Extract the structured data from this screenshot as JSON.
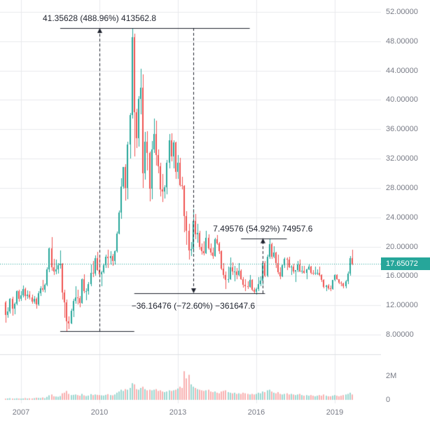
{
  "chart": {
    "last_price_label": "17.65072"
  },
  "annotations": {
    "measure_up_1": {
      "label": "41.35628 (488.96%) 413562.8",
      "from_price": 8.46,
      "to_price": 49.81,
      "arrow_month": "2010-01",
      "direction": "up",
      "top_line": {
        "price": 49.81,
        "from": "2008-07",
        "to": "2015-10"
      },
      "bottom_line": {
        "price": 8.46,
        "from": "2008-07",
        "to": "2011-05"
      }
    },
    "measure_down": {
      "label": "−36.16476 (−72.60%) −361647.6",
      "from_price": 49.81,
      "to_price": 13.65,
      "arrow_month": "2013-08",
      "direction": "down",
      "bottom_line": {
        "price": 13.65,
        "from": "2011-05",
        "to": "2016-05"
      }
    },
    "measure_up_2": {
      "label": "7.49576 (54.92%) 74957.6",
      "from_price": 13.65,
      "to_price": 21.14,
      "arrow_month": "2016-04",
      "direction": "up",
      "top_line": {
        "price": 21.14,
        "from": "2015-06",
        "to": "2017-03"
      }
    }
  },
  "chart_data": {
    "type": "candlestick",
    "start_month": "2006-06",
    "x_ticks": [
      2007,
      2010,
      2013,
      2016,
      2019
    ],
    "price_ticks": [
      52,
      48,
      44,
      40,
      36,
      32,
      28,
      24,
      20,
      16,
      12,
      8
    ],
    "price_tick_labels": [
      "52.00000",
      "48.00000",
      "44.00000",
      "40.00000",
      "36.00000",
      "32.00000",
      "28.00000",
      "24.00000",
      "20.00000",
      "16.00000",
      "12.00000",
      "8.00000"
    ],
    "volume_ticks": [
      {
        "label": "2M",
        "value": 2
      },
      {
        "label": "0",
        "value": 0
      }
    ],
    "last_price": 17.65072,
    "ylim": [
      5.3,
      53.6
    ],
    "ohlc": [
      [
        12.4,
        12.6,
        9.6,
        10.7
      ],
      [
        10.7,
        11.7,
        10.3,
        11.2
      ],
      [
        11.2,
        13.0,
        10.9,
        12.9
      ],
      [
        12.9,
        13.2,
        10.6,
        11.5
      ],
      [
        11.5,
        12.4,
        10.8,
        12.2
      ],
      [
        12.2,
        14.0,
        12.0,
        13.9
      ],
      [
        13.9,
        14.1,
        12.5,
        12.9
      ],
      [
        12.9,
        13.9,
        12.6,
        13.4
      ],
      [
        13.4,
        14.7,
        13.1,
        14.2
      ],
      [
        14.2,
        14.4,
        12.7,
        13.3
      ],
      [
        13.3,
        14.0,
        12.9,
        13.5
      ],
      [
        13.5,
        13.9,
        12.8,
        13.1
      ],
      [
        13.1,
        13.5,
        12.2,
        12.5
      ],
      [
        12.5,
        13.3,
        12.2,
        12.9
      ],
      [
        12.9,
        13.1,
        11.5,
        12.1
      ],
      [
        12.1,
        13.9,
        11.9,
        13.6
      ],
      [
        13.6,
        14.6,
        13.3,
        14.3
      ],
      [
        14.3,
        15.5,
        13.8,
        14.1
      ],
      [
        14.1,
        15.0,
        13.7,
        14.8
      ],
      [
        14.8,
        17.2,
        14.6,
        16.9
      ],
      [
        16.9,
        19.9,
        16.5,
        19.8
      ],
      [
        19.8,
        21.3,
        16.7,
        17.2
      ],
      [
        17.2,
        18.3,
        16.1,
        16.6
      ],
      [
        16.6,
        18.2,
        16.2,
        16.9
      ],
      [
        16.9,
        17.8,
        16.3,
        17.5
      ],
      [
        17.5,
        19.5,
        17.0,
        17.7
      ],
      [
        17.7,
        17.8,
        12.8,
        13.7
      ],
      [
        13.7,
        14.1,
        10.3,
        12.4
      ],
      [
        12.4,
        12.8,
        8.4,
        9.8
      ],
      [
        9.8,
        10.5,
        8.8,
        9.5
      ],
      [
        9.5,
        11.5,
        9.4,
        11.3
      ],
      [
        11.3,
        12.9,
        10.4,
        12.6
      ],
      [
        12.6,
        14.6,
        12.2,
        13.1
      ],
      [
        13.1,
        14.1,
        12.1,
        13.0
      ],
      [
        13.0,
        13.3,
        11.7,
        12.3
      ],
      [
        12.3,
        15.7,
        12.2,
        15.6
      ],
      [
        15.6,
        16.2,
        13.6,
        13.9
      ],
      [
        13.9,
        14.3,
        12.7,
        13.9
      ],
      [
        13.9,
        15.2,
        13.5,
        14.9
      ],
      [
        14.9,
        17.6,
        14.6,
        16.4
      ],
      [
        16.4,
        18.0,
        15.8,
        16.3
      ],
      [
        16.3,
        18.8,
        16.0,
        18.4
      ],
      [
        18.4,
        19.3,
        16.7,
        16.8
      ],
      [
        16.8,
        18.9,
        16.0,
        16.2
      ],
      [
        16.2,
        16.7,
        14.6,
        16.5
      ],
      [
        16.5,
        17.7,
        16.3,
        17.5
      ],
      [
        17.5,
        18.9,
        17.1,
        18.6
      ],
      [
        18.6,
        19.6,
        17.1,
        18.4
      ],
      [
        18.4,
        19.4,
        17.6,
        18.7
      ],
      [
        18.7,
        19.0,
        17.4,
        18.0
      ],
      [
        18.0,
        19.5,
        17.6,
        19.4
      ],
      [
        19.4,
        22.1,
        19.2,
        21.8
      ],
      [
        21.8,
        24.9,
        21.7,
        24.6
      ],
      [
        24.6,
        29.3,
        23.8,
        28.2
      ],
      [
        28.2,
        30.9,
        27.9,
        30.9
      ],
      [
        30.9,
        31.2,
        26.3,
        28.0
      ],
      [
        28.0,
        34.3,
        26.5,
        33.9
      ],
      [
        33.9,
        38.2,
        32.0,
        37.9
      ],
      [
        37.9,
        49.8,
        37.5,
        48.6
      ],
      [
        48.6,
        49.0,
        32.3,
        38.3
      ],
      [
        38.3,
        38.8,
        33.4,
        34.8
      ],
      [
        34.8,
        40.5,
        33.6,
        40.1
      ],
      [
        40.1,
        44.3,
        38.0,
        41.7
      ],
      [
        41.7,
        43.5,
        28.0,
        30.0
      ],
      [
        30.0,
        35.6,
        29.1,
        34.3
      ],
      [
        34.3,
        35.7,
        30.4,
        32.8
      ],
      [
        32.8,
        33.0,
        26.2,
        27.9
      ],
      [
        27.9,
        34.4,
        26.5,
        33.3
      ],
      [
        33.3,
        37.5,
        32.8,
        35.4
      ],
      [
        35.4,
        37.2,
        31.1,
        32.5
      ],
      [
        32.5,
        33.3,
        30.0,
        31.0
      ],
      [
        31.0,
        31.4,
        26.8,
        27.8
      ],
      [
        27.8,
        29.9,
        26.1,
        27.5
      ],
      [
        27.5,
        28.4,
        26.6,
        28.1
      ],
      [
        28.1,
        31.8,
        27.1,
        31.4
      ],
      [
        31.4,
        35.4,
        30.7,
        34.5
      ],
      [
        34.5,
        35.5,
        31.6,
        32.3
      ],
      [
        32.3,
        34.5,
        30.7,
        34.2
      ],
      [
        34.2,
        34.3,
        29.2,
        30.2
      ],
      [
        30.2,
        32.5,
        29.2,
        31.4
      ],
      [
        31.4,
        32.1,
        28.2,
        28.4
      ],
      [
        28.4,
        29.5,
        27.8,
        28.3
      ],
      [
        28.3,
        28.4,
        22.0,
        24.2
      ],
      [
        24.2,
        24.8,
        20.2,
        22.2
      ],
      [
        22.2,
        23.1,
        18.2,
        19.5
      ],
      [
        19.5,
        20.6,
        18.7,
        19.7
      ],
      [
        19.7,
        25.1,
        19.2,
        23.5
      ],
      [
        23.5,
        24.5,
        21.0,
        21.7
      ],
      [
        21.7,
        23.1,
        20.5,
        21.9
      ],
      [
        21.9,
        22.2,
        19.6,
        20.0
      ],
      [
        20.0,
        20.4,
        18.9,
        19.4
      ],
      [
        19.4,
        20.7,
        18.8,
        19.1
      ],
      [
        19.1,
        22.2,
        19.0,
        21.2
      ],
      [
        21.2,
        21.7,
        19.6,
        19.8
      ],
      [
        19.8,
        20.4,
        18.8,
        19.2
      ],
      [
        19.2,
        19.9,
        18.3,
        18.7
      ],
      [
        18.7,
        21.2,
        18.6,
        21.0
      ],
      [
        21.0,
        21.6,
        20.2,
        20.4
      ],
      [
        20.4,
        20.6,
        19.0,
        19.4
      ],
      [
        19.4,
        19.5,
        16.8,
        17.0
      ],
      [
        17.0,
        17.8,
        15.7,
        16.1
      ],
      [
        16.1,
        16.6,
        14.2,
        15.5
      ],
      [
        15.5,
        17.3,
        15.1,
        15.6
      ],
      [
        15.6,
        18.5,
        15.5,
        17.2
      ],
      [
        17.2,
        17.9,
        16.1,
        16.6
      ],
      [
        16.6,
        17.4,
        15.3,
        16.6
      ],
      [
        16.6,
        17.1,
        15.6,
        16.1
      ],
      [
        16.1,
        17.8,
        15.9,
        16.7
      ],
      [
        16.7,
        16.9,
        15.5,
        15.6
      ],
      [
        15.6,
        15.8,
        14.4,
        14.8
      ],
      [
        14.8,
        15.6,
        13.9,
        14.6
      ],
      [
        14.6,
        15.3,
        14.2,
        14.5
      ],
      [
        14.5,
        16.1,
        14.4,
        15.5
      ],
      [
        15.5,
        15.6,
        13.9,
        14.1
      ],
      [
        14.1,
        14.4,
        13.6,
        13.8
      ],
      [
        13.8,
        14.4,
        13.5,
        14.2
      ],
      [
        14.2,
        15.8,
        13.9,
        14.9
      ],
      [
        14.9,
        15.9,
        14.6,
        15.4
      ],
      [
        15.4,
        18.0,
        14.8,
        17.8
      ],
      [
        17.8,
        18.0,
        15.8,
        16.0
      ],
      [
        16.0,
        18.9,
        15.8,
        18.6
      ],
      [
        18.6,
        21.1,
        18.3,
        20.3
      ],
      [
        20.3,
        20.5,
        18.3,
        18.6
      ],
      [
        18.6,
        20.1,
        18.4,
        19.2
      ],
      [
        19.2,
        19.3,
        17.1,
        17.8
      ],
      [
        17.8,
        18.9,
        16.2,
        16.5
      ],
      [
        16.5,
        17.2,
        15.6,
        15.9
      ],
      [
        15.9,
        17.6,
        15.8,
        17.5
      ],
      [
        17.5,
        18.5,
        17.1,
        18.3
      ],
      [
        18.3,
        18.5,
        16.8,
        18.2
      ],
      [
        18.2,
        18.6,
        17.1,
        17.2
      ],
      [
        17.2,
        17.5,
        16.1,
        17.3
      ],
      [
        17.3,
        17.7,
        16.3,
        16.6
      ],
      [
        16.6,
        16.8,
        15.2,
        16.8
      ],
      [
        16.8,
        18.0,
        16.5,
        17.6
      ],
      [
        17.6,
        18.2,
        16.5,
        16.6
      ],
      [
        16.6,
        17.4,
        16.3,
        16.7
      ],
      [
        16.7,
        17.4,
        16.3,
        16.4
      ],
      [
        16.4,
        17.0,
        15.6,
        16.9
      ],
      [
        16.9,
        17.7,
        16.8,
        17.3
      ],
      [
        17.3,
        17.4,
        16.2,
        16.4
      ],
      [
        16.4,
        16.8,
        16.1,
        16.3
      ],
      [
        16.3,
        17.3,
        16.1,
        16.4
      ],
      [
        16.4,
        16.9,
        16.1,
        16.4
      ],
      [
        16.4,
        17.3,
        15.9,
        16.1
      ],
      [
        16.1,
        16.2,
        15.2,
        15.5
      ],
      [
        15.5,
        15.6,
        14.3,
        14.5
      ],
      [
        14.5,
        14.8,
        13.9,
        14.7
      ],
      [
        14.7,
        14.9,
        14.1,
        14.3
      ],
      [
        14.3,
        14.7,
        13.9,
        14.2
      ],
      [
        14.2,
        15.5,
        14.1,
        15.5
      ],
      [
        15.5,
        16.2,
        15.3,
        16.1
      ],
      [
        16.1,
        16.2,
        15.5,
        15.6
      ],
      [
        15.6,
        15.6,
        14.9,
        15.1
      ],
      [
        15.1,
        15.3,
        14.6,
        15.0
      ],
      [
        15.0,
        15.1,
        14.3,
        14.6
      ],
      [
        14.6,
        15.5,
        14.3,
        15.3
      ],
      [
        15.3,
        16.6,
        14.9,
        16.3
      ],
      [
        16.3,
        18.7,
        16.0,
        18.4
      ],
      [
        18.4,
        19.6,
        17.5,
        17.65
      ]
    ],
    "volume": [
      0.1,
      0.12,
      0.14,
      0.11,
      0.1,
      0.13,
      0.11,
      0.1,
      0.12,
      0.15,
      0.11,
      0.13,
      0.12,
      0.14,
      0.18,
      0.16,
      0.15,
      0.2,
      0.14,
      0.25,
      0.38,
      0.45,
      0.3,
      0.28,
      0.26,
      0.32,
      0.55,
      0.6,
      0.75,
      0.5,
      0.4,
      0.42,
      0.45,
      0.4,
      0.35,
      0.5,
      0.38,
      0.32,
      0.36,
      0.48,
      0.4,
      0.45,
      0.42,
      0.4,
      0.38,
      0.36,
      0.42,
      0.48,
      0.4,
      0.38,
      0.45,
      0.6,
      0.7,
      0.85,
      0.75,
      0.9,
      0.85,
      1.0,
      1.4,
      1.3,
      0.9,
      0.85,
      1.0,
      1.1,
      0.9,
      0.8,
      0.85,
      0.8,
      0.85,
      0.9,
      0.75,
      0.8,
      0.7,
      0.65,
      0.7,
      0.8,
      0.75,
      0.8,
      0.85,
      0.95,
      1.1,
      1.0,
      2.4,
      1.8,
      2.1,
      1.3,
      1.1,
      1.0,
      0.9,
      0.85,
      0.8,
      0.75,
      0.8,
      0.85,
      0.7,
      0.65,
      0.7,
      0.6,
      0.55,
      0.7,
      0.75,
      0.8,
      0.65,
      0.6,
      0.55,
      0.6,
      0.5,
      0.55,
      0.5,
      0.6,
      0.55,
      0.5,
      0.45,
      0.5,
      0.45,
      0.5,
      0.6,
      0.55,
      0.7,
      0.65,
      0.8,
      0.85,
      0.7,
      0.6,
      0.55,
      0.65,
      0.5,
      0.45,
      0.5,
      0.55,
      0.45,
      0.5,
      0.45,
      0.4,
      0.45,
      0.5,
      0.4,
      0.35,
      0.4,
      0.35,
      0.4,
      0.35,
      0.3,
      0.35,
      0.4,
      0.35,
      0.45,
      0.35,
      0.3,
      0.3,
      0.35,
      0.4,
      0.35,
      0.3,
      0.35,
      0.4,
      0.45,
      0.5,
      0.6,
      0.45
    ],
    "colors": {
      "up": "#26a69a",
      "down": "#ef5350",
      "vol_up": "rgba(38,166,154,0.45)",
      "vol_down": "rgba(239,83,80,0.45)",
      "grid": "#e8eaec",
      "border": "#dcdfe3",
      "axis_text": "#787b86",
      "last_line": "#26a69a",
      "badge_bg": "#26a69a",
      "badge_text": "#ffffff",
      "measure": "#1e222d"
    }
  }
}
